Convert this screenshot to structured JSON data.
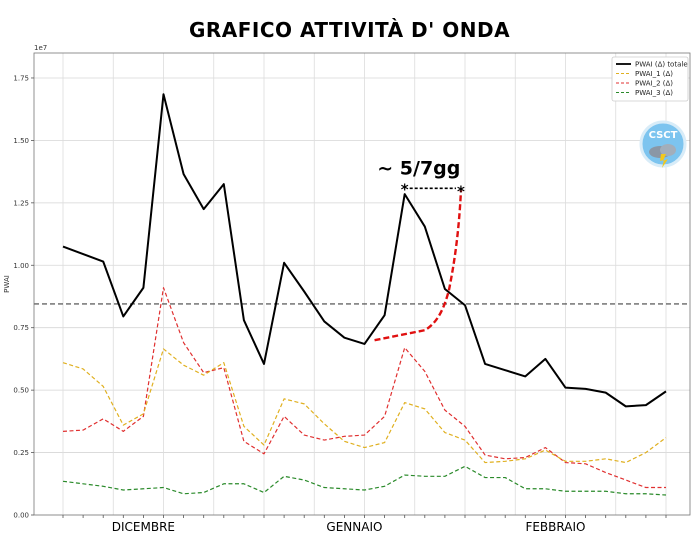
{
  "title": "GRAFICO  ATTIVITÀ  D' ONDA",
  "logo": {
    "text": "CSCT"
  },
  "chart_data": {
    "type": "line",
    "ylabel": "PWAI",
    "y_scale_note": "1e7",
    "ylim": [
      0,
      18500000
    ],
    "yticks": [
      0,
      2500000,
      5000000,
      7500000,
      10000000,
      12500000,
      15000000,
      17500000
    ],
    "ytick_labels": [
      "0.00",
      "0.25",
      "0.50",
      "0.75",
      "1.00",
      "1.25",
      "1.50",
      "1.75"
    ],
    "x_count": 30,
    "month_labels": [
      {
        "label": "DICEMBRE",
        "x": 4
      },
      {
        "label": "GENNAIO",
        "x": 14.5
      },
      {
        "label": "FEBBRAIO",
        "x": 24.5
      }
    ],
    "legend_position": "top-right",
    "series": [
      {
        "name": "PWAI (Δ) totale",
        "color": "#000000",
        "dash": "solid",
        "values": [
          10750000,
          10450000,
          10150000,
          7950000,
          9100000,
          16850000,
          13650000,
          12250000,
          13250000,
          7800000,
          6050000,
          10100000,
          8950000,
          7750000,
          7100000,
          6850000,
          8000000,
          12850000,
          11550000,
          9050000,
          8400000,
          6050000,
          5800000,
          5550000,
          6250000,
          5100000,
          5050000,
          4900000,
          4350000,
          4400000,
          4950000
        ]
      },
      {
        "name": "PWAI_1 (Δ)",
        "color": "#e0b020",
        "dash": "dashed",
        "values": [
          6100000,
          5850000,
          5150000,
          3600000,
          4050000,
          6650000,
          6000000,
          5600000,
          6100000,
          3550000,
          2800000,
          4650000,
          4450000,
          3650000,
          2950000,
          2700000,
          2900000,
          4500000,
          4250000,
          3300000,
          3000000,
          2100000,
          2150000,
          2250000,
          2600000,
          2150000,
          2150000,
          2250000,
          2100000,
          2500000,
          3100000
        ]
      },
      {
        "name": "PWAI_2 (Δ)",
        "color": "#e03030",
        "dash": "dashed",
        "values": [
          3350000,
          3400000,
          3850000,
          3350000,
          3950000,
          9100000,
          6900000,
          5700000,
          5900000,
          2950000,
          2450000,
          3950000,
          3200000,
          3000000,
          3150000,
          3200000,
          3950000,
          6700000,
          5750000,
          4200000,
          3550000,
          2400000,
          2250000,
          2300000,
          2700000,
          2100000,
          2050000,
          1700000,
          1400000,
          1100000,
          1100000
        ]
      },
      {
        "name": "PWAI_3 (Δ)",
        "color": "#2a8a2a",
        "dash": "dashed",
        "values": [
          1350000,
          1250000,
          1150000,
          1000000,
          1050000,
          1100000,
          850000,
          900000,
          1250000,
          1250000,
          900000,
          1550000,
          1400000,
          1100000,
          1050000,
          1000000,
          1150000,
          1600000,
          1550000,
          1550000,
          1950000,
          1500000,
          1500000,
          1050000,
          1050000,
          950000,
          950000,
          950000,
          850000,
          850000,
          800000
        ]
      }
    ],
    "horizontal_line": {
      "y": 8450000,
      "color": "#444444",
      "dash": "dashed"
    },
    "annotation": {
      "text": "~ 5/7gg",
      "projection": {
        "color": "#e01010",
        "points": [
          [
            15.5,
            7000000
          ],
          [
            18,
            7400000
          ],
          [
            19.2,
            9000000
          ],
          [
            19.8,
            13000000
          ]
        ]
      },
      "star_a": {
        "x": 17,
        "y": 13000000
      },
      "star_b": {
        "x": 19.8,
        "y": 13000000
      }
    }
  }
}
